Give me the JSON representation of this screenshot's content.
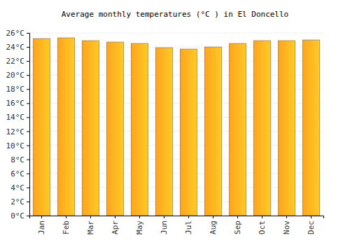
{
  "chart_data": {
    "type": "bar",
    "title": "Average monthly temperatures (°C ) in El Doncello",
    "categories": [
      "Jan",
      "Feb",
      "Mar",
      "Apr",
      "May",
      "Jun",
      "Jul",
      "Aug",
      "Sep",
      "Oct",
      "Nov",
      "Dec"
    ],
    "values": [
      25.2,
      25.3,
      24.9,
      24.7,
      24.5,
      23.9,
      23.7,
      24.0,
      24.5,
      24.9,
      24.9,
      25.0
    ],
    "color": "#ffa41e",
    "ylim": [
      0,
      26
    ],
    "yticks": [
      {
        "value": 0,
        "label": "0°C"
      },
      {
        "value": 2,
        "label": "2°C"
      },
      {
        "value": 4,
        "label": "4°C"
      },
      {
        "value": 6,
        "label": "6°C"
      },
      {
        "value": 8,
        "label": "8°C"
      },
      {
        "value": 10,
        "label": "10°C"
      },
      {
        "value": 12,
        "label": "12°C"
      },
      {
        "value": 14,
        "label": "14°C"
      },
      {
        "value": 16,
        "label": "16°C"
      },
      {
        "value": 18,
        "label": "18°C"
      },
      {
        "value": 20,
        "label": "20°C"
      },
      {
        "value": 22,
        "label": "22°C"
      },
      {
        "value": 24,
        "label": "24°C"
      },
      {
        "value": 26,
        "label": "26°C"
      }
    ],
    "grid": true
  }
}
